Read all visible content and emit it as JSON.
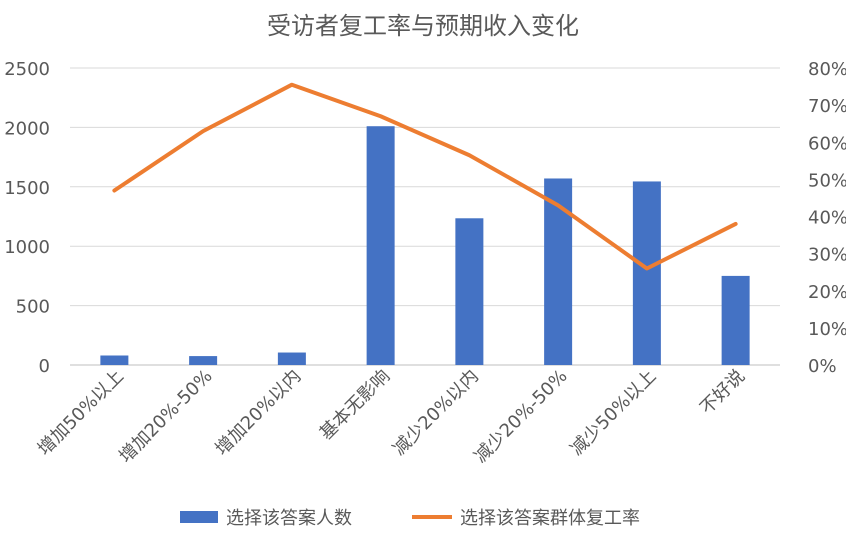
{
  "chart_data": {
    "type": "bar",
    "title": "受访者复工率与预期收入变化",
    "categories": [
      "增加50%以上",
      "增加20%-50%",
      "增加20%以内",
      "基本无影响",
      "减少20%以内",
      "减少20%-50%",
      "减少50%以上",
      "不好说"
    ],
    "series": [
      {
        "name": "选择该答案人数",
        "type": "bar",
        "axis": "left",
        "color": "#4472C4",
        "values": [
          80,
          75,
          105,
          2010,
          1235,
          1570,
          1545,
          750
        ]
      },
      {
        "name": "选择该答案群体复工率",
        "type": "line",
        "axis": "right",
        "color": "#ED7D31",
        "values": [
          0.47,
          0.63,
          0.755,
          0.67,
          0.565,
          0.43,
          0.26,
          0.38
        ]
      }
    ],
    "y_left": {
      "min": 0,
      "max": 2500,
      "ticks": [
        0,
        500,
        1000,
        1500,
        2000,
        2500
      ]
    },
    "y_right": {
      "min": 0,
      "max": 0.8,
      "ticks": [
        "0%",
        "10%",
        "20%",
        "30%",
        "40%",
        "50%",
        "60%",
        "70%",
        "80%"
      ]
    },
    "grid": true,
    "legend_position": "bottom"
  }
}
